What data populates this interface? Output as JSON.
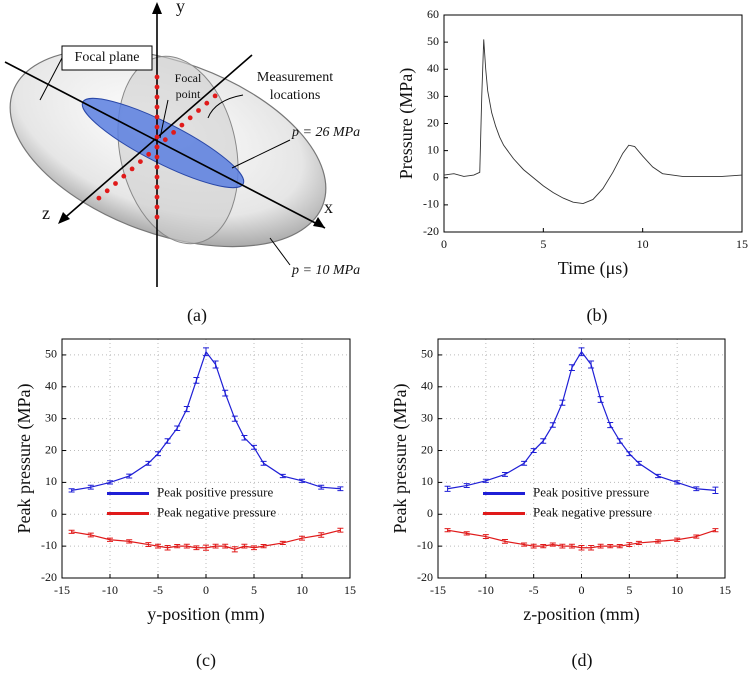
{
  "captions": [
    "(a)",
    "(b)",
    "(c)",
    "(d)"
  ],
  "diagram": {
    "y_axis": "y",
    "x_axis": "x",
    "z_axis": "z",
    "focal_plane": "Focal plane",
    "focal_point": [
      "Focal",
      "point"
    ],
    "measurement": [
      "Measurement",
      "locations"
    ],
    "inner_contour": "p = 26 MPa",
    "outer_contour": "p = 10 MPa"
  },
  "chart_data": [
    {
      "type": "line",
      "x_label": "Time (μs)",
      "y_label": "Pressure (MPa)",
      "x": [
        0,
        0.5,
        1,
        1.5,
        1.8,
        1.9,
        2.0,
        2.1,
        2.2,
        2.4,
        2.6,
        2.8,
        3,
        3.5,
        4,
        4.5,
        5,
        5.5,
        6,
        6.5,
        7,
        7.5,
        8,
        8.5,
        9,
        9.3,
        9.6,
        10,
        10.5,
        11,
        11.5,
        12,
        13,
        14,
        15
      ],
      "series": [
        {
          "color": "#333333",
          "values": [
            1,
            1.5,
            0.5,
            1,
            2,
            30,
            51,
            40,
            32,
            24,
            19,
            15,
            12,
            7,
            3,
            0,
            -3,
            -5.5,
            -7.5,
            -9,
            -9.5,
            -8,
            -4,
            2,
            9,
            12,
            11.5,
            8,
            4,
            1.5,
            1,
            0.5,
            0.5,
            0.5,
            1
          ]
        }
      ],
      "xlim": [
        0,
        15
      ],
      "ylim": [
        -20,
        60
      ],
      "xticks": [
        0,
        5,
        10,
        15
      ],
      "yticks": [
        -20,
        -10,
        0,
        10,
        20,
        30,
        40,
        50,
        60
      ],
      "grid": false
    },
    {
      "type": "line",
      "x_label": "y-position (mm)",
      "y_label": "Peak pressure (MPa)",
      "x": [
        -14,
        -12,
        -10,
        -8,
        -6,
        -5,
        -4,
        -3,
        -2,
        -1,
        0,
        1,
        2,
        3,
        4,
        5,
        6,
        8,
        10,
        12,
        14
      ],
      "series": [
        {
          "name": "Peak positive pressure",
          "color": "#1f1fd6",
          "values": [
            7.5,
            8.5,
            10,
            12,
            16,
            19,
            23,
            27,
            33,
            42,
            51,
            47,
            38,
            30,
            24,
            21,
            16,
            12,
            10.5,
            8.5,
            8
          ],
          "errors": [
            0.5,
            0.6,
            0.5,
            0.6,
            0.6,
            0.6,
            0.7,
            0.7,
            0.8,
            0.9,
            1.2,
            1.1,
            0.9,
            0.8,
            0.7,
            0.6,
            0.6,
            0.5,
            0.5,
            0.6,
            0.6
          ]
        },
        {
          "name": "Peak negative pressure",
          "color": "#e01a1a",
          "values": [
            -5.5,
            -6.5,
            -8,
            -8.5,
            -9.5,
            -10,
            -10.5,
            -10,
            -10,
            -10.5,
            -10.5,
            -10,
            -10,
            -11,
            -10,
            -10.5,
            -10,
            -9,
            -7.5,
            -6.5,
            -5
          ],
          "errors": [
            0.5,
            0.6,
            0.5,
            0.5,
            0.6,
            0.6,
            0.7,
            0.5,
            0.6,
            0.6,
            0.8,
            0.6,
            0.6,
            0.8,
            0.6,
            0.6,
            0.5,
            0.5,
            0.6,
            0.7,
            0.6
          ]
        }
      ],
      "xlim": [
        -15,
        15
      ],
      "ylim": [
        -20,
        55
      ],
      "xticks": [
        -15,
        -10,
        -5,
        0,
        5,
        10,
        15
      ],
      "yticks": [
        -20,
        -10,
        0,
        10,
        20,
        30,
        40,
        50
      ],
      "grid": true,
      "legend": "center left"
    },
    {
      "type": "line",
      "x_label": "z-position (mm)",
      "y_label": "Peak pressure (MPa)",
      "x": [
        -14,
        -12,
        -10,
        -8,
        -6,
        -5,
        -4,
        -3,
        -2,
        -1,
        0,
        1,
        2,
        3,
        4,
        5,
        6,
        8,
        10,
        12,
        14
      ],
      "series": [
        {
          "name": "Peak positive pressure",
          "color": "#1f1fd6",
          "values": [
            8,
            9,
            10.5,
            12.5,
            16,
            20,
            23,
            28,
            35,
            46,
            51,
            47,
            36,
            28,
            23,
            19,
            16,
            12,
            10,
            8,
            7.5
          ],
          "errors": [
            0.8,
            0.6,
            0.5,
            0.6,
            0.6,
            0.6,
            0.7,
            0.7,
            0.8,
            0.9,
            1.2,
            1.1,
            0.9,
            0.8,
            0.7,
            0.6,
            0.6,
            0.5,
            0.5,
            0.6,
            1.0
          ]
        },
        {
          "name": "Peak negative pressure",
          "color": "#e01a1a",
          "values": [
            -5,
            -6,
            -7,
            -8.5,
            -9.5,
            -10,
            -10,
            -9.5,
            -10,
            -10,
            -10.5,
            -10.5,
            -10,
            -10,
            -10,
            -9.5,
            -9,
            -8.5,
            -8,
            -7,
            -5
          ],
          "errors": [
            0.5,
            0.5,
            0.6,
            0.6,
            0.5,
            0.6,
            0.5,
            0.5,
            0.6,
            0.6,
            0.7,
            0.7,
            0.6,
            0.5,
            0.5,
            0.6,
            0.5,
            0.5,
            0.5,
            0.5,
            0.5
          ]
        }
      ],
      "xlim": [
        -15,
        15
      ],
      "ylim": [
        -20,
        55
      ],
      "xticks": [
        -15,
        -10,
        -5,
        0,
        5,
        10,
        15
      ],
      "yticks": [
        -20,
        -10,
        0,
        10,
        20,
        30,
        40,
        50
      ],
      "grid": true,
      "legend": "center left"
    }
  ]
}
